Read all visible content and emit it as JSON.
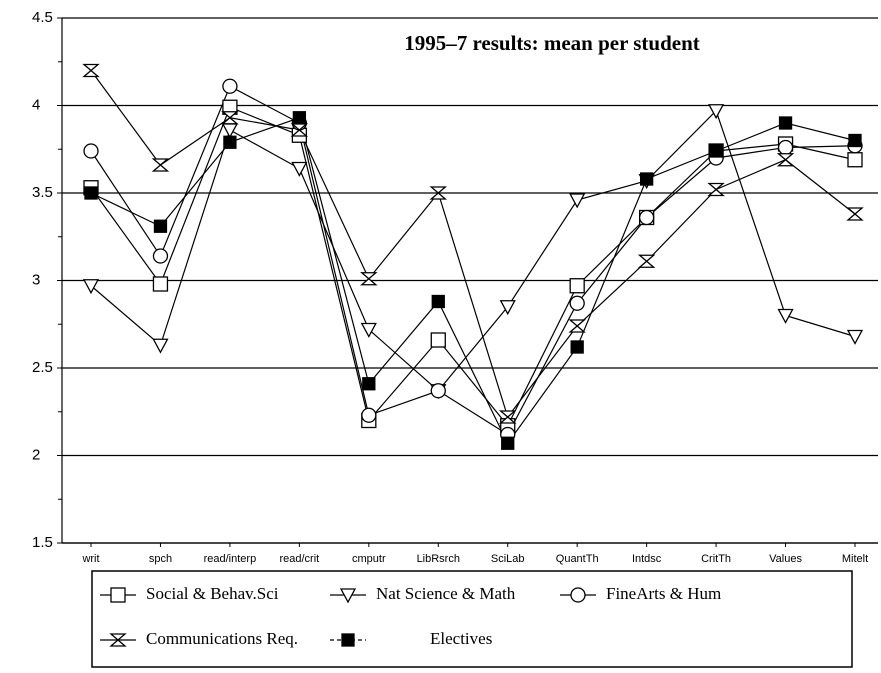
{
  "chart_data": {
    "type": "line",
    "title": "1995–7 results: mean per student",
    "categories": [
      "writ",
      "spch",
      "read/interp",
      "read/crit",
      "cmputr",
      "LibRsrch",
      "SciLab",
      "QuantTh",
      "Intdsc",
      "CritTh",
      "Values",
      "Mitelt"
    ],
    "series": [
      {
        "name": "Social & Behav.Sci",
        "color": "#000000",
        "values": [
          3.53,
          2.98,
          3.99,
          3.83,
          2.2,
          2.66,
          2.17,
          2.97,
          3.36,
          3.74,
          3.78,
          3.69
        ]
      },
      {
        "name": "Nat Science & Math",
        "color": "#000000",
        "values": [
          2.97,
          2.63,
          3.86,
          3.64,
          2.72,
          2.37,
          2.85,
          3.46,
          3.57,
          3.97,
          2.8,
          2.68
        ]
      },
      {
        "name": "FineArts & Hum",
        "color": "#000000",
        "values": [
          3.74,
          3.14,
          4.11,
          3.9,
          2.23,
          2.37,
          2.12,
          2.87,
          3.36,
          3.7,
          3.76,
          3.77
        ]
      },
      {
        "name": "Communications Req.",
        "color": "#000000",
        "values": [
          4.2,
          3.66,
          3.93,
          3.86,
          3.01,
          3.5,
          2.22,
          2.74,
          3.11,
          3.52,
          3.69,
          3.38
        ]
      },
      {
        "name": "Electives",
        "color": "#000000",
        "values": [
          3.5,
          3.31,
          3.79,
          3.93,
          2.41,
          2.88,
          2.07,
          2.62,
          3.58,
          3.74,
          3.9,
          3.8
        ]
      }
    ],
    "ylim": [
      1.5,
      4.5
    ],
    "yticks": [
      1.5,
      2,
      2.5,
      3,
      3.5,
      4,
      4.5
    ],
    "grid": true
  }
}
